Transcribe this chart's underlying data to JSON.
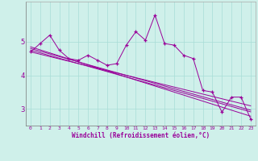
{
  "xlabel": "Windchill (Refroidissement éolien,°C)",
  "bg_color": "#cff0ea",
  "line_color": "#990099",
  "x_values": [
    0,
    1,
    2,
    3,
    4,
    5,
    6,
    7,
    8,
    9,
    10,
    11,
    12,
    13,
    14,
    15,
    16,
    17,
    18,
    19,
    20,
    21,
    22,
    23
  ],
  "main_line": [
    4.7,
    4.95,
    5.2,
    4.75,
    4.5,
    4.45,
    4.6,
    4.45,
    4.3,
    4.35,
    4.9,
    5.3,
    5.05,
    5.8,
    4.95,
    4.9,
    4.6,
    4.5,
    3.55,
    3.5,
    2.9,
    3.35,
    3.35,
    2.7
  ],
  "trend_lines": [
    [
      4.85,
      4.76,
      4.67,
      4.58,
      4.49,
      4.4,
      4.31,
      4.22,
      4.13,
      4.04,
      3.95,
      3.86,
      3.77,
      3.68,
      3.59,
      3.5,
      3.41,
      3.32,
      3.23,
      3.14,
      3.05,
      2.96,
      2.87,
      2.78
    ],
    [
      4.8,
      4.72,
      4.64,
      4.56,
      4.48,
      4.4,
      4.32,
      4.24,
      4.16,
      4.08,
      4.0,
      3.92,
      3.84,
      3.76,
      3.68,
      3.6,
      3.52,
      3.44,
      3.36,
      3.28,
      3.2,
      3.12,
      3.04,
      2.96
    ],
    [
      4.75,
      4.67,
      4.59,
      4.51,
      4.43,
      4.35,
      4.27,
      4.19,
      4.11,
      4.03,
      3.95,
      3.87,
      3.79,
      3.71,
      3.63,
      3.55,
      3.47,
      3.39,
      3.31,
      3.23,
      3.15,
      3.07,
      2.99,
      2.91
    ],
    [
      4.7,
      4.63,
      4.56,
      4.49,
      4.42,
      4.35,
      4.28,
      4.21,
      4.14,
      4.07,
      4.0,
      3.93,
      3.86,
      3.79,
      3.72,
      3.65,
      3.58,
      3.51,
      3.44,
      3.37,
      3.3,
      3.23,
      3.16,
      3.09
    ]
  ],
  "ylim": [
    2.5,
    6.2
  ],
  "yticks": [
    3,
    4,
    5
  ],
  "xlim": [
    -0.5,
    23.5
  ],
  "xticks": [
    0,
    1,
    2,
    3,
    4,
    5,
    6,
    7,
    8,
    9,
    10,
    11,
    12,
    13,
    14,
    15,
    16,
    17,
    18,
    19,
    20,
    21,
    22,
    23
  ]
}
